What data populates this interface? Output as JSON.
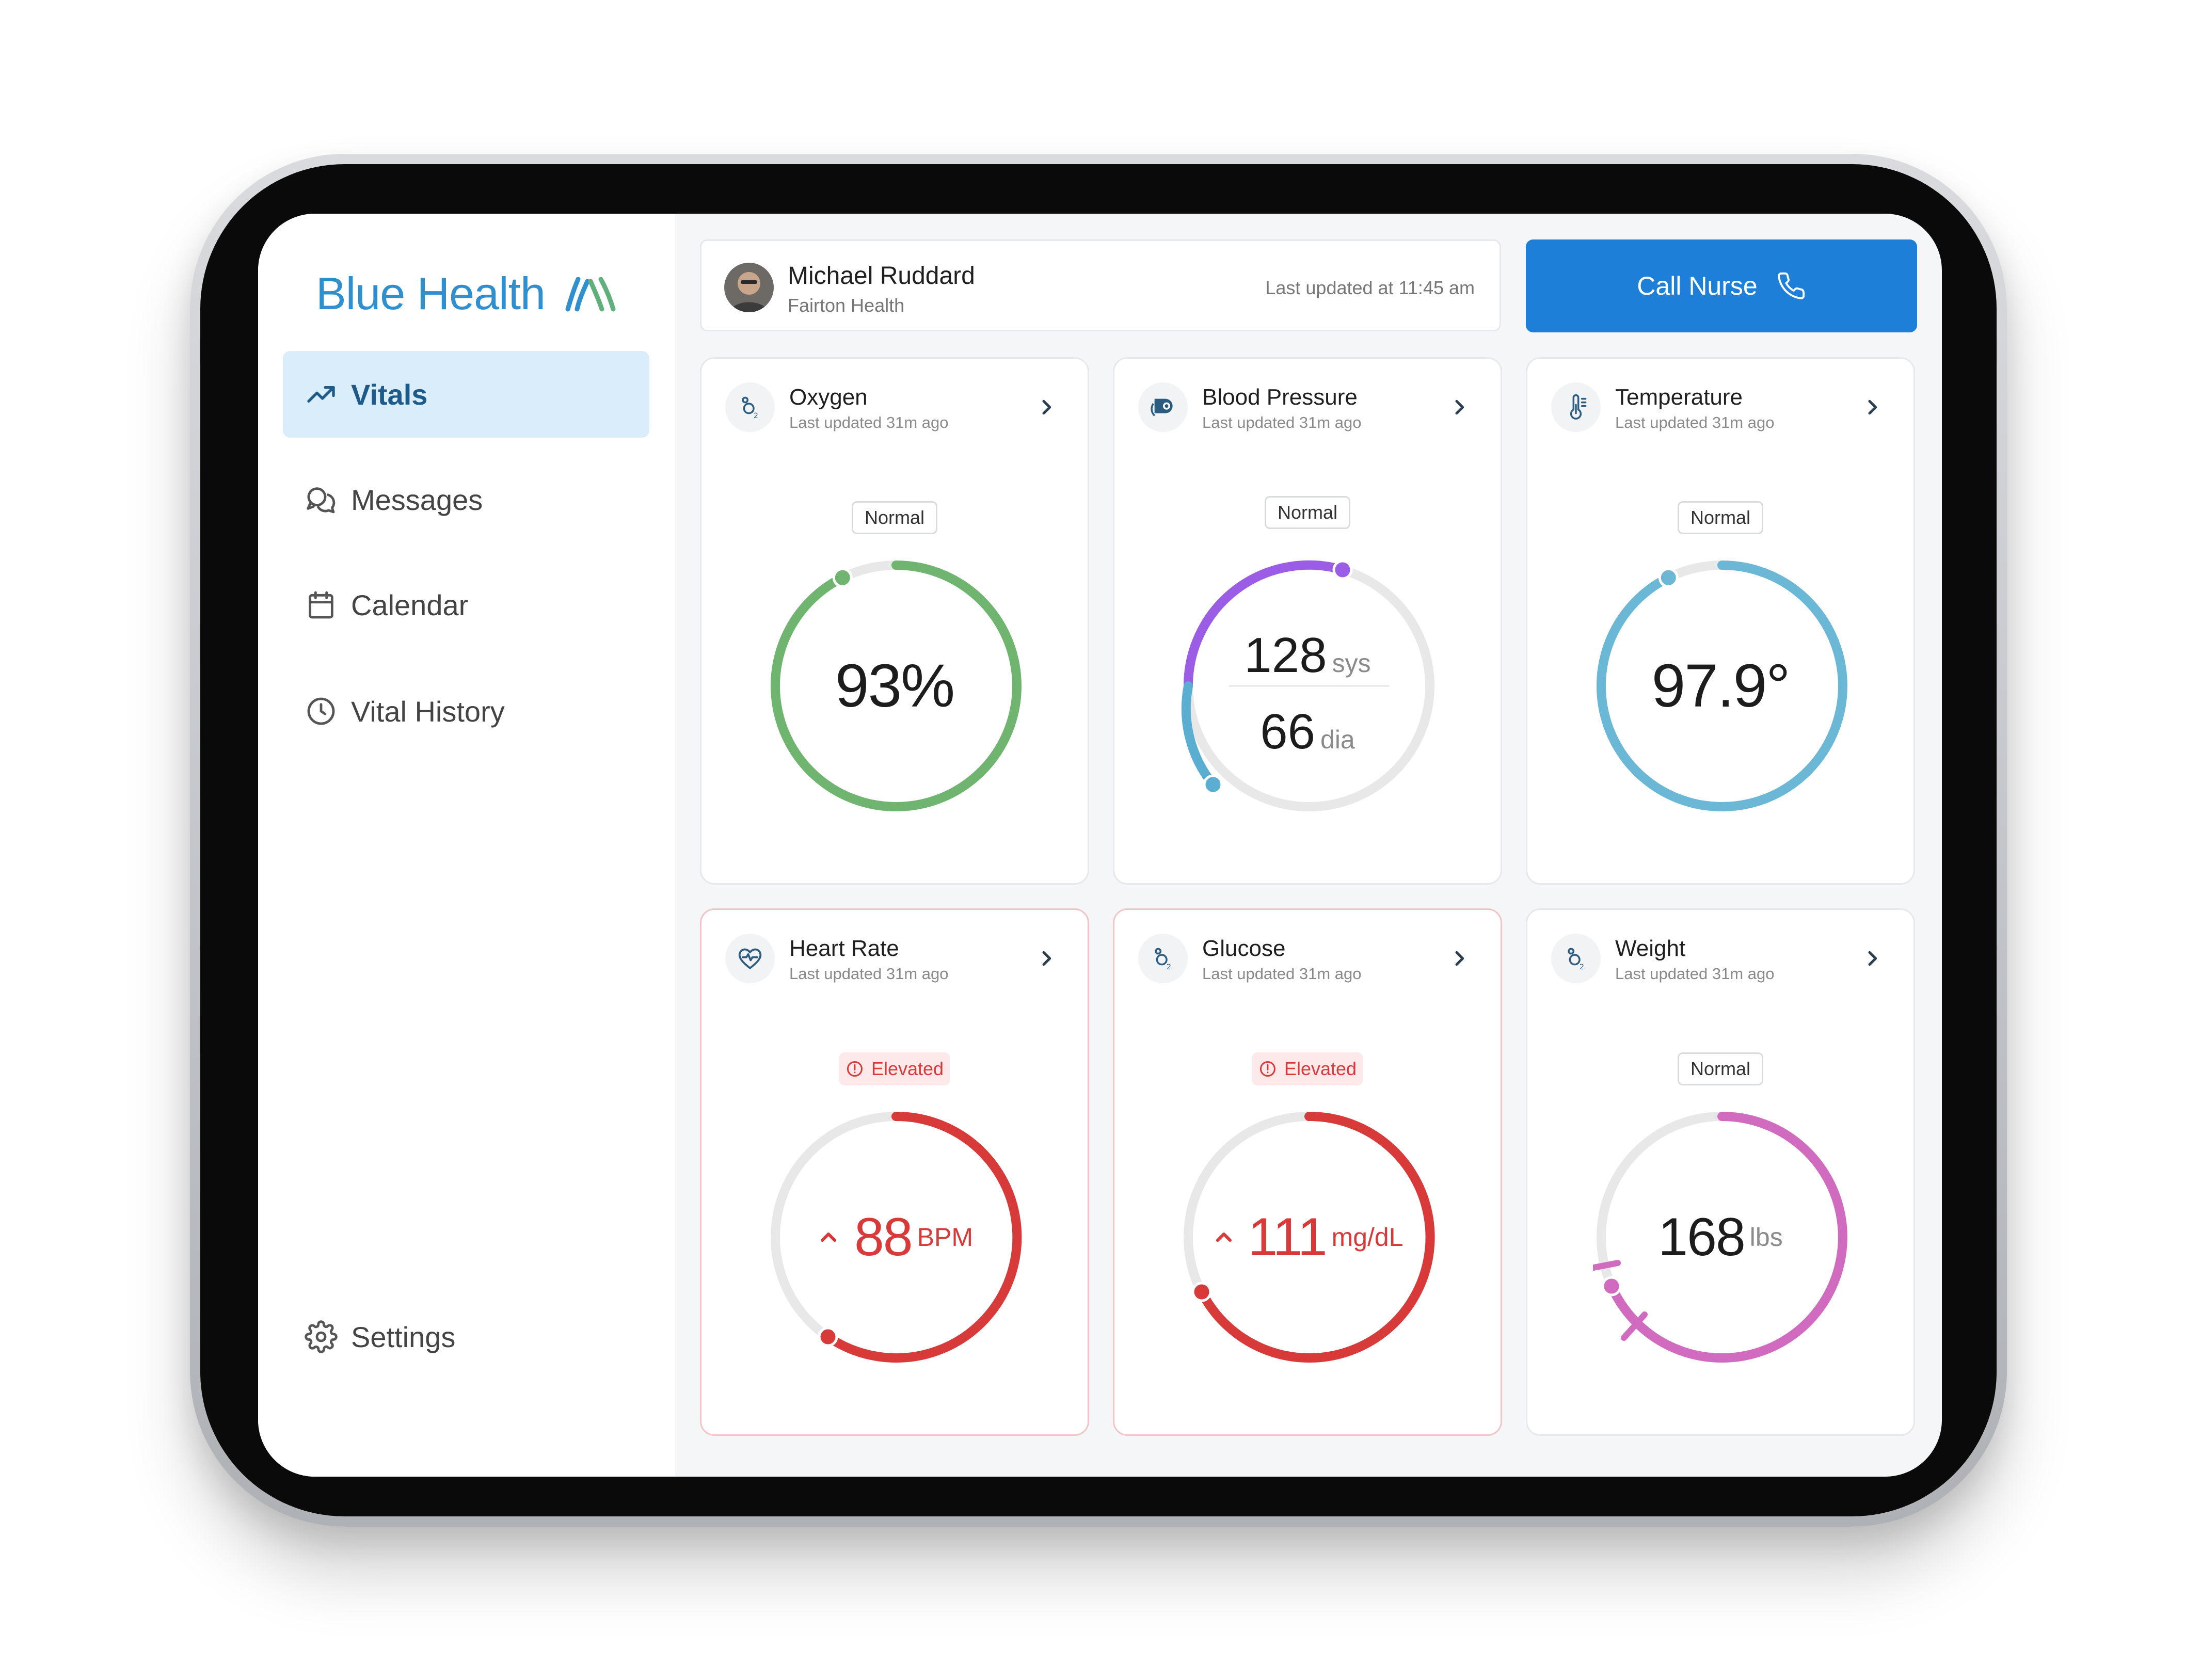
{
  "brand": {
    "name": "Blue Health"
  },
  "nav": [
    {
      "label": "Vitals",
      "icon": "trend-up-icon",
      "active": true
    },
    {
      "label": "Messages",
      "icon": "chat-bubbles-icon"
    },
    {
      "label": "Calendar",
      "icon": "calendar-icon"
    },
    {
      "label": "Vital History",
      "icon": "clock-icon"
    }
  ],
  "settings": {
    "label": "Settings",
    "icon": "gear-icon"
  },
  "patient": {
    "name": "Michael Ruddard",
    "organization": "Fairton Health",
    "last_updated": "Last updated at 11:45 am"
  },
  "call_nurse": {
    "label": "Call Nurse",
    "icon": "phone-icon"
  },
  "colors": {
    "accent": "#1e7fd8",
    "oxygen": "#6fb56f",
    "bp_sys": "#9b5de5",
    "bp_dia": "#5aaed1",
    "temperature": "#6bb7d6",
    "alert": "#d83a3a",
    "weight": "#d16bc0",
    "track": "#e8e8e8"
  },
  "vitals": {
    "oxygen": {
      "title": "Oxygen",
      "updated": "Last updated 31m ago",
      "status": "Normal",
      "value": "93%",
      "level": 0.93
    },
    "blood_pressure": {
      "title": "Blood Pressure",
      "updated": "Last updated 31m ago",
      "status": "Normal",
      "sys": "128",
      "sys_unit": "sys",
      "dia": "66",
      "dia_unit": "dia"
    },
    "temperature": {
      "title": "Temperature",
      "updated": "Last updated 31m ago",
      "status": "Normal",
      "value": "97.9°",
      "level": 0.94
    },
    "heart_rate": {
      "title": "Heart Rate",
      "updated": "Last updated 31m ago",
      "status": "Elevated",
      "value": "88",
      "unit": "BPM",
      "level": 0.58
    },
    "glucose": {
      "title": "Glucose",
      "updated": "Last updated 31m ago",
      "status": "Elevated",
      "value": "111",
      "unit": "mg/dL",
      "level": 0.66
    },
    "weight": {
      "title": "Weight",
      "updated": "Last updated 31m ago",
      "status": "Normal",
      "value": "168",
      "unit": "lbs",
      "level": 0.7
    }
  }
}
